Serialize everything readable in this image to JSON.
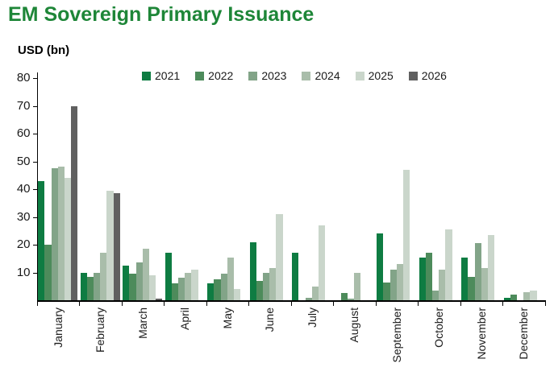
{
  "page": {
    "title": "EM Sovereign Primary Issuance",
    "y_axis_label": "USD (bn)"
  },
  "chart_data": {
    "type": "bar",
    "title": "EM Sovereign Primary Issuance",
    "ylabel": "USD (bn)",
    "xlabel": "",
    "ylim": [
      0,
      80
    ],
    "y_ticks": [
      10,
      20,
      30,
      40,
      50,
      60,
      70,
      80
    ],
    "grid": false,
    "legend_position": "top-center-inside",
    "categories": [
      "January",
      "February",
      "March",
      "April",
      "May",
      "June",
      "July",
      "August",
      "September",
      "October",
      "November",
      "December"
    ],
    "series": [
      {
        "name": "2021",
        "color": "#0e7c42",
        "values": [
          43,
          10,
          12.5,
          17,
          6,
          21,
          17,
          0,
          24,
          15.5,
          15.5,
          1
        ]
      },
      {
        "name": "2022",
        "color": "#4d8b5b",
        "values": [
          20,
          8.5,
          9.5,
          6,
          7.5,
          7,
          0,
          2.5,
          6.5,
          17,
          8.5,
          2
        ]
      },
      {
        "name": "2023",
        "color": "#82a488",
        "values": [
          47.5,
          10,
          13.5,
          8,
          9.5,
          10,
          1,
          0.5,
          11,
          3.5,
          20.5,
          0
        ]
      },
      {
        "name": "2024",
        "color": "#a9bdaa",
        "values": [
          48,
          17,
          18.5,
          10,
          15.5,
          11.5,
          5,
          10,
          13,
          11,
          11.5,
          3
        ]
      },
      {
        "name": "2025",
        "color": "#cad6cb",
        "values": [
          44,
          39.5,
          9,
          11,
          4,
          31,
          27,
          0,
          47,
          25.5,
          23.5,
          3.5
        ]
      },
      {
        "name": "2026",
        "color": "#606060",
        "values": [
          70,
          38.5,
          0.5,
          0,
          0,
          0,
          0,
          0,
          0,
          0,
          0,
          0
        ]
      }
    ]
  }
}
